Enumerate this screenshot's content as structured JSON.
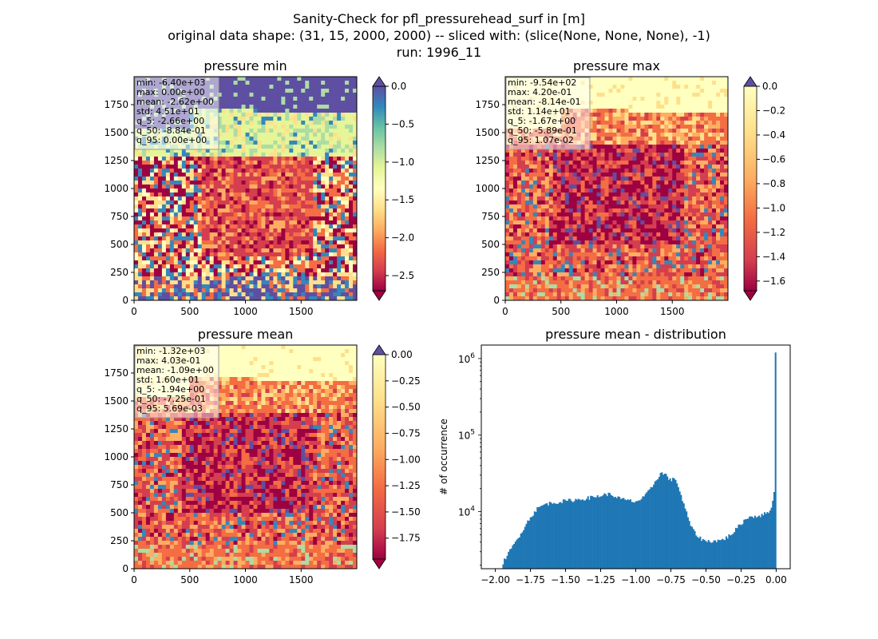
{
  "figure": {
    "suptitle_lines": [
      "Sanity-Check for pfl_pressurehead_surf in [m]",
      "original data shape: (31, 15, 2000, 2000) -- sliced with: (slice(None, None, None), -1)",
      "run: 1996_11"
    ]
  },
  "chart_data": [
    {
      "type": "heatmap",
      "title": "pressure min",
      "xlim": [
        0,
        2000
      ],
      "ylim": [
        0,
        2000
      ],
      "xticks": [
        "0",
        "500",
        "1000",
        "1500"
      ],
      "yticks": [
        "0",
        "250",
        "500",
        "750",
        "1000",
        "1250",
        "1500",
        "1750"
      ],
      "colormap": "Spectral",
      "colorbar": {
        "range": [
          -2.7,
          0.0
        ],
        "ticks": [
          "0.0",
          "−0.5",
          "−1.0",
          "−1.5",
          "−2.0",
          "−2.5"
        ],
        "extend": "both"
      },
      "stats": [
        "min: -6.40e+03",
        "max: 0.00e+00",
        "mean: -2.62e+00",
        "std: 4.51e+01",
        "q_5: -2.66e+00",
        "q_50: -8.84e-01",
        "q_95: 0.00e+00"
      ]
    },
    {
      "type": "heatmap",
      "title": "pressure max",
      "xlim": [
        0,
        2000
      ],
      "ylim": [
        0,
        2000
      ],
      "xticks": [
        "0",
        "500",
        "1000",
        "1500"
      ],
      "yticks": [
        "0",
        "250",
        "500",
        "750",
        "1000",
        "1250",
        "1500",
        "1750"
      ],
      "colormap": "Spectral",
      "colorbar": {
        "range": [
          -1.68,
          0.0
        ],
        "ticks": [
          "0.0",
          "−0.2",
          "−0.4",
          "−0.6",
          "−0.8",
          "−1.0",
          "−1.2",
          "−1.4",
          "−1.6"
        ],
        "extend": "both"
      },
      "stats": [
        "min: -9.54e+02",
        "max: 4.20e-01",
        "mean: -8.14e-01",
        "std: 1.14e+01",
        "q_5: -1.67e+00",
        "q_50: -5.89e-01",
        "q_95: 1.07e-02"
      ]
    },
    {
      "type": "heatmap",
      "title": "pressure mean",
      "xlim": [
        0,
        2000
      ],
      "ylim": [
        0,
        2000
      ],
      "xticks": [
        "0",
        "500",
        "1000",
        "1500"
      ],
      "yticks": [
        "0",
        "250",
        "500",
        "750",
        "1000",
        "1250",
        "1500",
        "1750"
      ],
      "colormap": "Spectral",
      "colorbar": {
        "range": [
          -1.95,
          0.0
        ],
        "ticks": [
          "0.00",
          "−0.25",
          "−0.50",
          "−0.75",
          "−1.00",
          "−1.25",
          "−1.50",
          "−1.75"
        ],
        "extend": "both"
      },
      "stats": [
        "min: -1.32e+03",
        "max: 4.03e-01",
        "mean: -1.09e+00",
        "std: 1.60e+01",
        "q_5: -1.94e+00",
        "q_50: -7.25e-01",
        "q_95: 5.69e-03"
      ]
    },
    {
      "type": "bar",
      "title": "pressure mean - distribution",
      "ylabel": "# of occurrence",
      "yscale": "log",
      "xlim": [
        -2.1,
        0.1
      ],
      "ylim": [
        1800,
        1500000
      ],
      "xticks": [
        -2.0,
        -1.75,
        -1.5,
        -1.25,
        -1.0,
        -0.75,
        -0.5,
        -0.25,
        0.0
      ],
      "xticklabels": [
        "−2.00",
        "−1.75",
        "−1.50",
        "−1.25",
        "−1.00",
        "−0.75",
        "−0.50",
        "−0.25",
        "0.00"
      ],
      "yticklabels": [
        {
          "base": "10",
          "exp": "4",
          "value": 10000
        },
        {
          "base": "10",
          "exp": "5",
          "value": 100000
        },
        {
          "base": "10",
          "exp": "6",
          "value": 1000000
        }
      ],
      "color": "#1f77b4",
      "bins": {
        "start": -1.95,
        "end": 0.0,
        "count": 200
      },
      "profile": [
        [
          -1.95,
          2100
        ],
        [
          -1.9,
          3000
        ],
        [
          -1.85,
          4200
        ],
        [
          -1.8,
          6000
        ],
        [
          -1.75,
          8500
        ],
        [
          -1.7,
          11000
        ],
        [
          -1.65,
          12500
        ],
        [
          -1.6,
          13000
        ],
        [
          -1.5,
          13800
        ],
        [
          -1.4,
          14500
        ],
        [
          -1.3,
          15500
        ],
        [
          -1.2,
          17000
        ],
        [
          -1.15,
          16000
        ],
        [
          -1.1,
          14500
        ],
        [
          -1.0,
          13500
        ],
        [
          -0.95,
          15000
        ],
        [
          -0.9,
          19000
        ],
        [
          -0.85,
          27000
        ],
        [
          -0.82,
          32000
        ],
        [
          -0.78,
          30000
        ],
        [
          -0.75,
          25000
        ],
        [
          -0.72,
          28000
        ],
        [
          -0.7,
          22000
        ],
        [
          -0.65,
          11000
        ],
        [
          -0.6,
          6000
        ],
        [
          -0.55,
          4600
        ],
        [
          -0.5,
          4100
        ],
        [
          -0.4,
          4200
        ],
        [
          -0.35,
          4600
        ],
        [
          -0.3,
          5500
        ],
        [
          -0.25,
          7000
        ],
        [
          -0.2,
          8500
        ],
        [
          -0.1,
          9000
        ],
        [
          -0.05,
          10000
        ],
        [
          -0.02,
          14000
        ],
        [
          -0.01,
          24000
        ],
        [
          0.0,
          1200000
        ]
      ]
    }
  ]
}
